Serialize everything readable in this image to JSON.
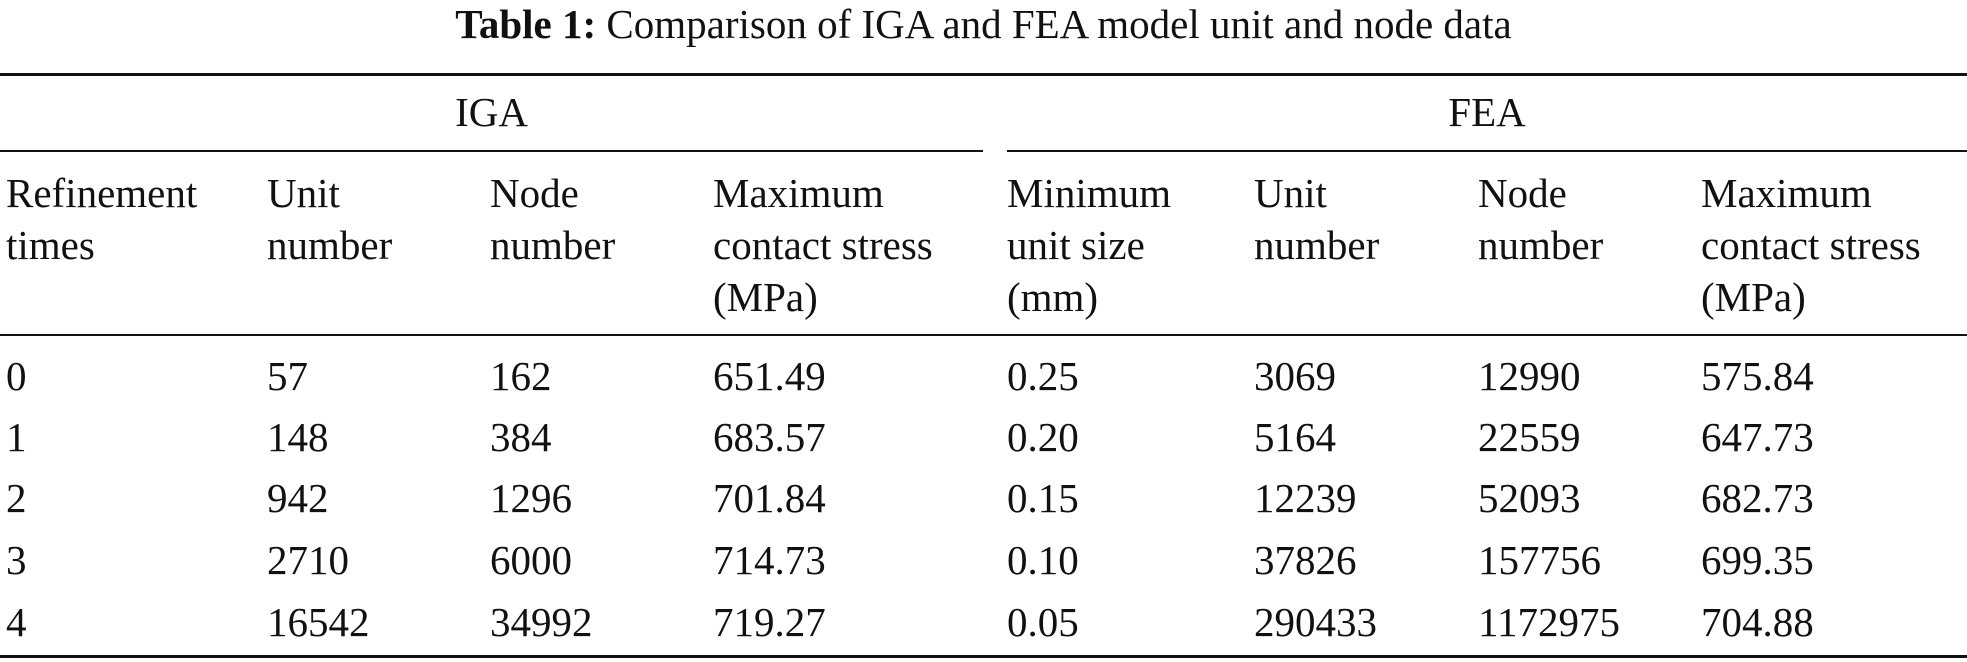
{
  "caption": {
    "label": "Table 1:",
    "text": "Comparison of IGA and FEA model unit and node data"
  },
  "groups": {
    "iga": "IGA",
    "fea": "FEA"
  },
  "headers": [
    "Refinement\ntimes",
    "Unit\nnumber",
    "Node\nnumber",
    "Maximum\ncontact stress\n(MPa)",
    "Minimum\nunit size\n(mm)",
    "Unit\nnumber",
    "Node\nnumber",
    "Maximum\ncontact stress\n(MPa)"
  ],
  "rows": [
    [
      "0",
      "57",
      "162",
      "651.49",
      "0.25",
      "3069",
      "12990",
      "575.84"
    ],
    [
      "1",
      "148",
      "384",
      "683.57",
      "0.20",
      "5164",
      "22559",
      "647.73"
    ],
    [
      "2",
      "942",
      "1296",
      "701.84",
      "0.15",
      "12239",
      "52093",
      "682.73"
    ],
    [
      "3",
      "2710",
      "6000",
      "714.73",
      "0.10",
      "37826",
      "157756",
      "699.35"
    ],
    [
      "4",
      "16542",
      "34992",
      "719.27",
      "0.05",
      "290433",
      "1172975",
      "704.88"
    ]
  ]
}
